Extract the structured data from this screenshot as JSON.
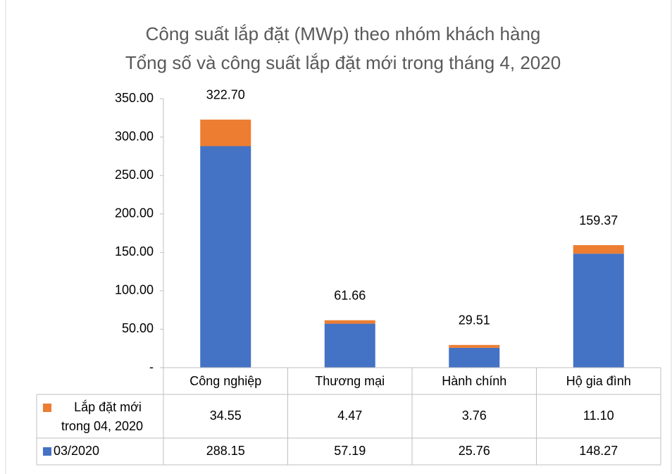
{
  "chart_data": {
    "type": "stacked_bar",
    "title": "Công suất lắp đặt (MWp) theo nhóm khách hàng",
    "subtitle": "Tổng số và công suất lắp đặt mới trong tháng 4, 2020",
    "categories": [
      "Công nghiệp",
      "Thương mại",
      "Hành chính",
      "Hộ gia đình"
    ],
    "series": [
      {
        "name": "03/2020",
        "color": "#4472c4",
        "values": [
          288.15,
          57.19,
          25.76,
          148.27
        ],
        "value_labels": [
          "288.15",
          "57.19",
          "25.76",
          "148.27"
        ]
      },
      {
        "name": "Lắp đặt mới trong 04, 2020",
        "color": "#ed7d31",
        "values": [
          34.55,
          4.47,
          3.76,
          11.1
        ],
        "value_labels": [
          "34.55",
          "4.47",
          "3.76",
          "11.10"
        ]
      }
    ],
    "total_labels": [
      "322.70",
      "61.66",
      "29.51",
      "159.37"
    ],
    "ylim": [
      0,
      350
    ],
    "yticks": [
      {
        "value": 0,
        "label": "-"
      },
      {
        "value": 50,
        "label": "50.00"
      },
      {
        "value": 100,
        "label": "100.00"
      },
      {
        "value": 150,
        "label": "150.00"
      },
      {
        "value": 200,
        "label": "200.00"
      },
      {
        "value": 250,
        "label": "250.00"
      },
      {
        "value": 300,
        "label": "300.00"
      },
      {
        "value": 350,
        "label": "350.00"
      }
    ],
    "data_table": true
  }
}
